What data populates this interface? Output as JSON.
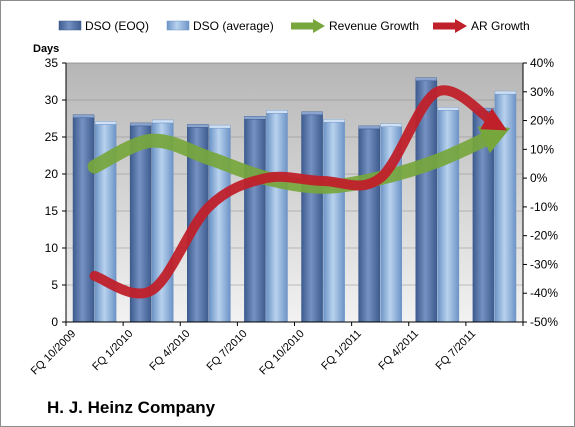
{
  "company": "H. J. Heinz Company",
  "chart_data": {
    "type": "bar",
    "ylabel": "Days",
    "categories": [
      "FQ 10/2009",
      "FQ 1/2010",
      "FQ 4/2010",
      "FQ 7/2010",
      "FQ 10/2010",
      "FQ 1/2011",
      "FQ 4/2011",
      "FQ 7/2011"
    ],
    "ylim": [
      0,
      35
    ],
    "y_ticks": [
      "0",
      "5",
      "10",
      "15",
      "20",
      "25",
      "30",
      "35"
    ],
    "y2lim": [
      -50,
      40
    ],
    "y2_ticks": [
      "-50%",
      "-40%",
      "-30%",
      "-20%",
      "-10%",
      "0%",
      "10%",
      "20%",
      "30%",
      "40%"
    ],
    "series": [
      {
        "name": "DSO (EOQ)",
        "kind": "bar",
        "color": "#5b7ab0",
        "values": [
          27.6,
          26.5,
          26.3,
          27.4,
          28.0,
          26.1,
          32.6,
          28.5
        ]
      },
      {
        "name": "DSO (average)",
        "kind": "bar",
        "color": "#8fb2dc",
        "values": [
          26.7,
          26.9,
          26.2,
          28.2,
          27.0,
          26.4,
          28.6,
          30.8
        ]
      },
      {
        "name": "Revenue Growth",
        "kind": "arrow",
        "axis": "secondary",
        "color": "#76a63c",
        "values": [
          4,
          13,
          7,
          0,
          -3,
          0,
          6,
          15
        ]
      },
      {
        "name": "AR Growth",
        "kind": "arrow",
        "axis": "secondary",
        "color": "#c0202a",
        "values": [
          -34,
          -39,
          -10,
          0,
          -1,
          0,
          30,
          19
        ]
      }
    ],
    "grid": true,
    "legend": "top"
  }
}
